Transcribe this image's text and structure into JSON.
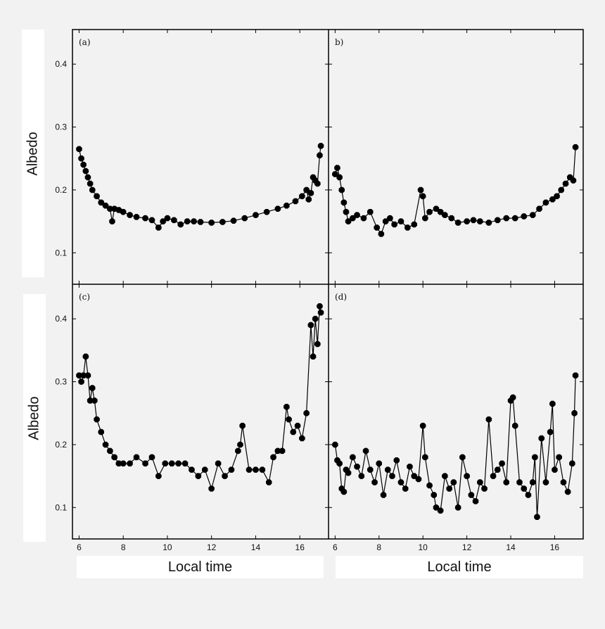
{
  "figure": {
    "ylabel": "Albedo",
    "xlabel": "Local time",
    "colors": {
      "marker": "#000000",
      "frame": "#000000",
      "background": "#f2f2f2",
      "label_box": "#ffffff"
    }
  },
  "chart_data": [
    {
      "panel": "(a)",
      "type": "scatter",
      "title": "",
      "xlabel": "",
      "ylabel": "Albedo",
      "xlim": [
        5.7,
        17.3
      ],
      "ylim": [
        0.05,
        0.455
      ],
      "xticks": [
        6,
        8,
        10,
        12,
        14,
        16
      ],
      "yticks": [
        0.1,
        0.2,
        0.3,
        0.4
      ],
      "show_xtick_labels": false,
      "show_ytick_labels": true,
      "series": [
        {
          "x": [
            6.0,
            6.1,
            6.2,
            6.3,
            6.4,
            6.5,
            6.6,
            6.8,
            7.0,
            7.2,
            7.4,
            7.5,
            7.6,
            7.8,
            8.0,
            8.3,
            8.6,
            9.0,
            9.3,
            9.6,
            9.8,
            10.0,
            10.3,
            10.6,
            10.9,
            11.2,
            11.5,
            12.0,
            12.5,
            13.0,
            13.5,
            14.0,
            14.5,
            15.0,
            15.4,
            15.8,
            16.1,
            16.3,
            16.4,
            16.5,
            16.6,
            16.7,
            16.8,
            16.9,
            16.95
          ],
          "y": [
            0.265,
            0.25,
            0.24,
            0.23,
            0.22,
            0.21,
            0.2,
            0.19,
            0.18,
            0.175,
            0.17,
            0.15,
            0.17,
            0.168,
            0.165,
            0.16,
            0.157,
            0.155,
            0.152,
            0.14,
            0.15,
            0.155,
            0.152,
            0.145,
            0.15,
            0.15,
            0.149,
            0.148,
            0.149,
            0.151,
            0.155,
            0.16,
            0.165,
            0.17,
            0.175,
            0.182,
            0.19,
            0.2,
            0.185,
            0.195,
            0.22,
            0.215,
            0.21,
            0.255,
            0.27
          ]
        }
      ]
    },
    {
      "panel": "b)",
      "type": "scatter",
      "title": "",
      "xlabel": "",
      "ylabel": "",
      "xlim": [
        5.7,
        17.3
      ],
      "ylim": [
        0.05,
        0.455
      ],
      "xticks": [
        6,
        8,
        10,
        12,
        14,
        16
      ],
      "yticks": [
        0.1,
        0.2,
        0.3,
        0.4
      ],
      "show_xtick_labels": false,
      "show_ytick_labels": false,
      "series": [
        {
          "x": [
            6.0,
            6.1,
            6.2,
            6.3,
            6.4,
            6.5,
            6.6,
            6.8,
            7.0,
            7.3,
            7.6,
            7.9,
            8.1,
            8.3,
            8.5,
            8.7,
            9.0,
            9.3,
            9.6,
            9.9,
            10.0,
            10.1,
            10.3,
            10.6,
            10.8,
            11.0,
            11.3,
            11.6,
            12.0,
            12.3,
            12.6,
            13.0,
            13.4,
            13.8,
            14.2,
            14.6,
            15.0,
            15.3,
            15.6,
            15.9,
            16.1,
            16.3,
            16.5,
            16.7,
            16.85,
            16.95
          ],
          "y": [
            0.225,
            0.235,
            0.22,
            0.2,
            0.18,
            0.165,
            0.15,
            0.155,
            0.16,
            0.155,
            0.165,
            0.14,
            0.13,
            0.15,
            0.155,
            0.145,
            0.15,
            0.14,
            0.145,
            0.2,
            0.19,
            0.155,
            0.165,
            0.17,
            0.165,
            0.16,
            0.155,
            0.148,
            0.15,
            0.152,
            0.15,
            0.148,
            0.152,
            0.155,
            0.155,
            0.158,
            0.16,
            0.17,
            0.18,
            0.185,
            0.19,
            0.2,
            0.21,
            0.22,
            0.215,
            0.268
          ]
        }
      ]
    },
    {
      "panel": "(c)",
      "type": "scatter",
      "title": "",
      "xlabel": "",
      "ylabel": "Albedo",
      "xlim": [
        5.7,
        17.3
      ],
      "ylim": [
        0.05,
        0.455
      ],
      "xticks": [
        6,
        8,
        10,
        12,
        14,
        16
      ],
      "yticks": [
        0.1,
        0.2,
        0.3,
        0.4
      ],
      "show_xtick_labels": true,
      "show_ytick_labels": true,
      "series": [
        {
          "x": [
            6.0,
            6.1,
            6.2,
            6.3,
            6.4,
            6.5,
            6.6,
            6.7,
            6.8,
            7.0,
            7.2,
            7.4,
            7.6,
            7.8,
            8.0,
            8.3,
            8.6,
            9.0,
            9.3,
            9.6,
            9.9,
            10.2,
            10.5,
            10.8,
            11.1,
            11.4,
            11.7,
            12.0,
            12.3,
            12.6,
            12.9,
            13.2,
            13.3,
            13.4,
            13.7,
            14.0,
            14.3,
            14.6,
            14.8,
            15.0,
            15.2,
            15.4,
            15.5,
            15.7,
            15.9,
            16.1,
            16.3,
            16.5,
            16.6,
            16.7,
            16.8,
            16.9,
            16.95
          ],
          "y": [
            0.31,
            0.3,
            0.31,
            0.34,
            0.31,
            0.27,
            0.29,
            0.27,
            0.24,
            0.22,
            0.2,
            0.19,
            0.18,
            0.17,
            0.17,
            0.17,
            0.18,
            0.17,
            0.18,
            0.15,
            0.17,
            0.17,
            0.17,
            0.17,
            0.16,
            0.15,
            0.16,
            0.13,
            0.17,
            0.15,
            0.16,
            0.19,
            0.2,
            0.23,
            0.16,
            0.16,
            0.16,
            0.14,
            0.18,
            0.19,
            0.19,
            0.26,
            0.24,
            0.22,
            0.23,
            0.21,
            0.25,
            0.39,
            0.34,
            0.4,
            0.36,
            0.42,
            0.41
          ]
        }
      ]
    },
    {
      "panel": "(d)",
      "type": "scatter",
      "title": "",
      "xlabel": "",
      "ylabel": "",
      "xlim": [
        5.7,
        17.3
      ],
      "ylim": [
        0.05,
        0.455
      ],
      "xticks": [
        6,
        8,
        10,
        12,
        14,
        16
      ],
      "yticks": [
        0.1,
        0.2,
        0.3,
        0.4
      ],
      "show_xtick_labels": true,
      "show_ytick_labels": false,
      "series": [
        {
          "x": [
            6.0,
            6.1,
            6.2,
            6.3,
            6.4,
            6.5,
            6.6,
            6.8,
            7.0,
            7.2,
            7.4,
            7.6,
            7.8,
            8.0,
            8.2,
            8.4,
            8.6,
            8.8,
            9.0,
            9.2,
            9.4,
            9.6,
            9.8,
            10.0,
            10.1,
            10.3,
            10.5,
            10.6,
            10.8,
            11.0,
            11.2,
            11.4,
            11.6,
            11.8,
            12.0,
            12.2,
            12.4,
            12.6,
            12.8,
            13.0,
            13.2,
            13.4,
            13.6,
            13.8,
            14.0,
            14.1,
            14.2,
            14.4,
            14.6,
            14.8,
            15.0,
            15.1,
            15.2,
            15.4,
            15.6,
            15.8,
            15.9,
            16.0,
            16.2,
            16.4,
            16.6,
            16.8,
            16.9,
            16.95
          ],
          "y": [
            0.2,
            0.175,
            0.17,
            0.13,
            0.125,
            0.16,
            0.155,
            0.18,
            0.165,
            0.15,
            0.19,
            0.16,
            0.14,
            0.17,
            0.12,
            0.16,
            0.15,
            0.175,
            0.14,
            0.13,
            0.165,
            0.15,
            0.145,
            0.23,
            0.18,
            0.135,
            0.12,
            0.1,
            0.095,
            0.15,
            0.13,
            0.14,
            0.1,
            0.18,
            0.15,
            0.12,
            0.11,
            0.14,
            0.13,
            0.24,
            0.15,
            0.16,
            0.17,
            0.14,
            0.27,
            0.275,
            0.23,
            0.14,
            0.13,
            0.12,
            0.14,
            0.18,
            0.085,
            0.21,
            0.14,
            0.22,
            0.265,
            0.16,
            0.18,
            0.14,
            0.125,
            0.17,
            0.25,
            0.31
          ]
        }
      ]
    }
  ]
}
